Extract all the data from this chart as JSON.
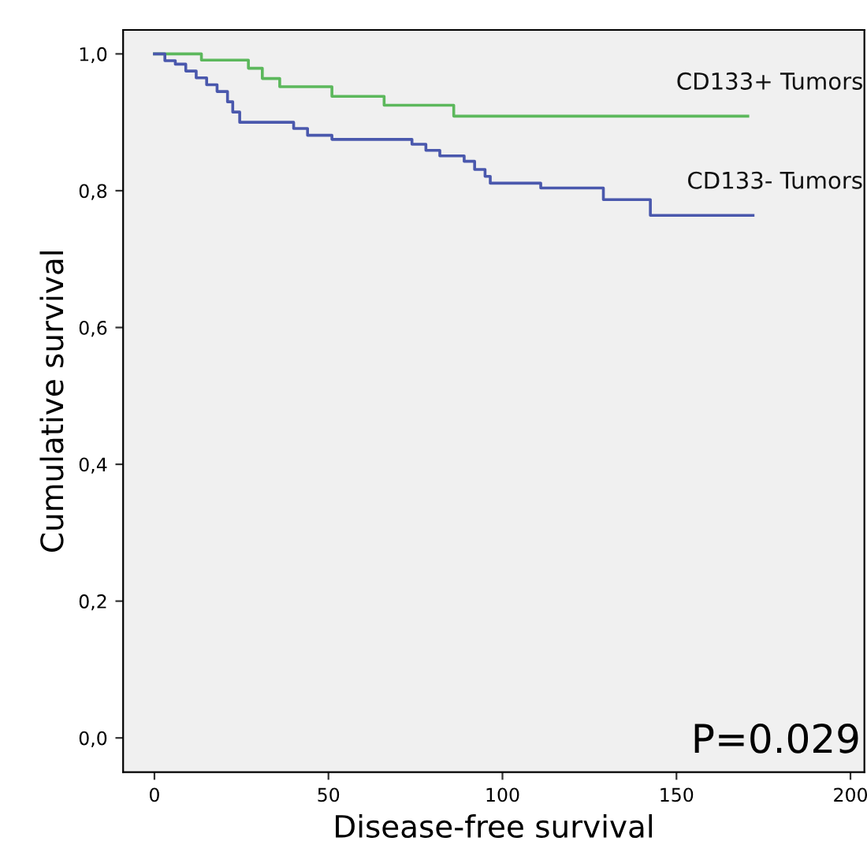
{
  "chart_data": {
    "type": "step",
    "xlabel": "Disease-free survival",
    "ylabel": "Cumulative survival",
    "xlim": [
      -9,
      204
    ],
    "ylim": [
      -0.05,
      1.035
    ],
    "xticks": [
      0,
      50,
      100,
      150,
      200
    ],
    "yticks": [
      {
        "value": 0,
        "label": "0,0"
      },
      {
        "value": 0.2,
        "label": "0,2"
      },
      {
        "value": 0.4,
        "label": "0,4"
      },
      {
        "value": 0.6,
        "label": "0,6"
      },
      {
        "value": 0.8,
        "label": "0,8"
      },
      {
        "value": 1.0,
        "label": "1,0"
      }
    ],
    "grid": false,
    "legend": false,
    "series": [
      {
        "name": "CD133+ Tumors",
        "color": "#5cb85c",
        "x": [
          0,
          13.5,
          27,
          31,
          36,
          51,
          66,
          86,
          170.5
        ],
        "values": [
          1.0,
          0.991,
          0.979,
          0.964,
          0.952,
          0.938,
          0.925,
          0.909,
          0.909
        ]
      },
      {
        "name": "CD133- Tumors",
        "color": "#4a58ad",
        "x": [
          0,
          3,
          6,
          9,
          12,
          15,
          18,
          21,
          22.5,
          24.5,
          40,
          44,
          51,
          74,
          78,
          82,
          89,
          92,
          95,
          96.5,
          111,
          129,
          142.5,
          172
        ],
        "values": [
          1.0,
          0.99,
          0.985,
          0.975,
          0.965,
          0.955,
          0.945,
          0.93,
          0.915,
          0.9,
          0.891,
          0.881,
          0.875,
          0.868,
          0.859,
          0.851,
          0.843,
          0.831,
          0.821,
          0.811,
          0.804,
          0.787,
          0.764,
          0.764
        ]
      }
    ],
    "annotations": [
      "P=0.029"
    ]
  }
}
